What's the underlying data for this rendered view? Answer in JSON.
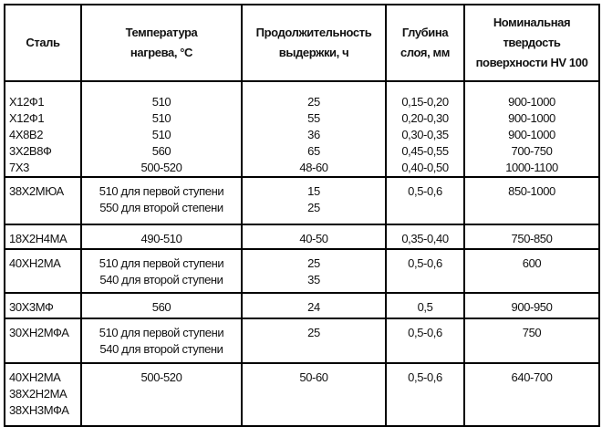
{
  "headers": [
    "Сталь",
    "Температура нагрева, °С",
    "Продолжительность выдержки, ч",
    "Глубина слоя, мм",
    "Номинальная твердость поверхности HV 100"
  ],
  "header_lines": [
    [
      "Сталь"
    ],
    [
      "Температура",
      "нагрева, °С"
    ],
    [
      "Продолжительность",
      "выдержки, ч"
    ],
    [
      "Глубина",
      "слоя, мм"
    ],
    [
      "Номинальная",
      "твердость",
      "поверхности HV 100"
    ]
  ],
  "rows": [
    [
      [
        "Х12Ф1",
        "Х12Ф1",
        "4Х8В2",
        "3Х2В8Ф",
        "7Х3"
      ],
      [
        "510",
        "510",
        "510",
        "560",
        "500-520"
      ],
      [
        "25",
        "55",
        "36",
        "65",
        "48-60"
      ],
      [
        "0,15-0,20",
        "0,20-0,30",
        "0,30-0,35",
        "0,45-0,55",
        "0,40-0,50"
      ],
      [
        "900-1000",
        "900-1000",
        "900-1000",
        "700-750",
        "1000-1100"
      ]
    ],
    [
      [
        "38Х2МЮА"
      ],
      [
        "510 для первой ступени",
        "550 для второй степени"
      ],
      [
        "15",
        "25"
      ],
      [
        "0,5-0,6"
      ],
      [
        "850-1000"
      ]
    ],
    [
      [
        "18Х2Н4МА"
      ],
      [
        "490-510"
      ],
      [
        "40-50"
      ],
      [
        "0,35-0,40"
      ],
      [
        "750-850"
      ]
    ],
    [
      [
        "40ХН2МА"
      ],
      [
        "510 для первой ступени",
        "540 для второй ступени"
      ],
      [
        "25",
        "35"
      ],
      [
        "0,5-0,6"
      ],
      [
        "600"
      ]
    ],
    [
      [
        "30Х3МФ"
      ],
      [
        "560"
      ],
      [
        "24"
      ],
      [
        "0,5"
      ],
      [
        "900-950"
      ]
    ],
    [
      [
        "30ХН2МФА"
      ],
      [
        "510 для первой ступени",
        "540 для второй ступени"
      ],
      [
        "25"
      ],
      [
        "0,5-0,6"
      ],
      [
        "750"
      ]
    ],
    [
      [
        "40ХН2МА",
        "38Х2Н2МА",
        "38ХН3МФА"
      ],
      [
        "500-520"
      ],
      [
        "50-60"
      ],
      [
        "0,5-0,6"
      ],
      [
        "640-700"
      ]
    ]
  ]
}
